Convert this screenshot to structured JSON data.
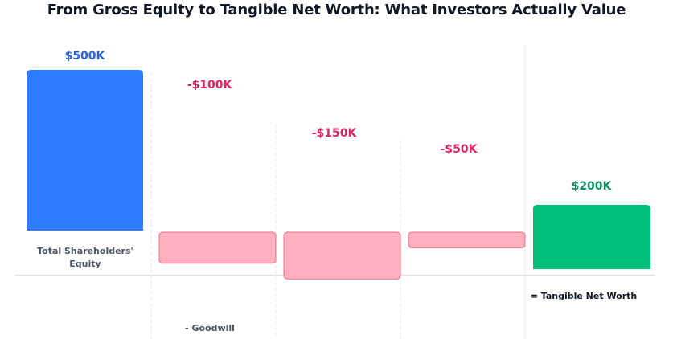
{
  "title": "From Gross Equity to Tangible Net Worth: What Investors Actually Value",
  "colors": {
    "start": "#2b7cff",
    "decrease_fill": "#ffb0bf",
    "decrease_stroke": "#e0728a",
    "total": "#00bd78",
    "positive_label": "#2b63e0",
    "negative_label": "#e0245e",
    "total_label": "#0a8f5c",
    "baseline": "#d1d5db",
    "gridline": "#e5e7eb"
  },
  "chart_data": {
    "type": "bar",
    "subtype": "waterfall",
    "title": "From Gross Equity to Tangible Net Worth: What Investors Actually Value",
    "unit": "$K",
    "categories": [
      "Total Shareholders' Equity",
      "- Goodwill",
      "",
      "",
      "= Tangible Net Worth"
    ],
    "values": [
      500,
      -100,
      -150,
      -50,
      200
    ],
    "kinds": [
      "start",
      "decrease",
      "decrease",
      "decrease",
      "total"
    ],
    "data_labels": [
      "$500K",
      "-$100K",
      "-$150K",
      "-$50K",
      "$200K"
    ],
    "grid": "vertical dashed",
    "legend": "none"
  }
}
